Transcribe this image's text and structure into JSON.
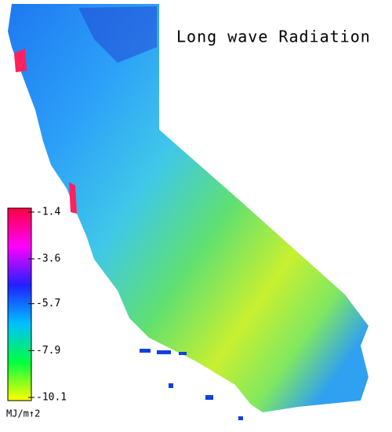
{
  "title": "Long wave Radiation",
  "colorbar": {
    "range": [
      -1.4,
      -10.1
    ],
    "ticks": [
      -1.4,
      -3.6,
      -5.7,
      -7.9,
      -10.1
    ],
    "colors": [
      "#ff0040",
      "#ff00ff",
      "#2020ff",
      "#00c0ff",
      "#00ff40",
      "#ffff00"
    ],
    "unit": "MJ/m↑2"
  }
}
